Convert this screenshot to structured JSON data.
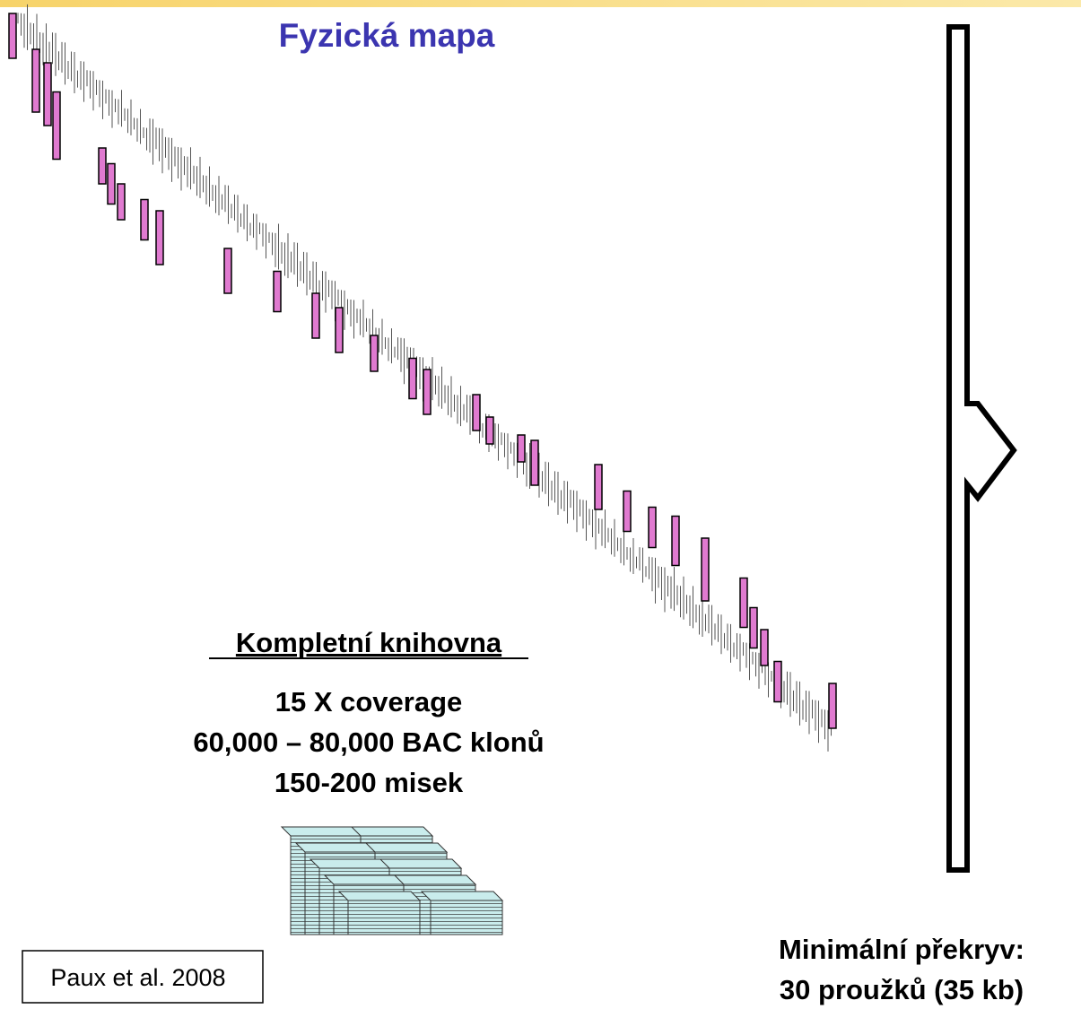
{
  "header": {
    "title": "Fyzická mapa"
  },
  "library": {
    "heading": "Kompletní knihovna",
    "lines": [
      "15 X coverage",
      "60,000 – 80,000 BAC klonů",
      "150-200 misek"
    ]
  },
  "citation": "Paux et al. 2008",
  "result": {
    "lines": [
      "Minimální překryv:",
      "30 proužků (35 kb)"
    ]
  }
}
